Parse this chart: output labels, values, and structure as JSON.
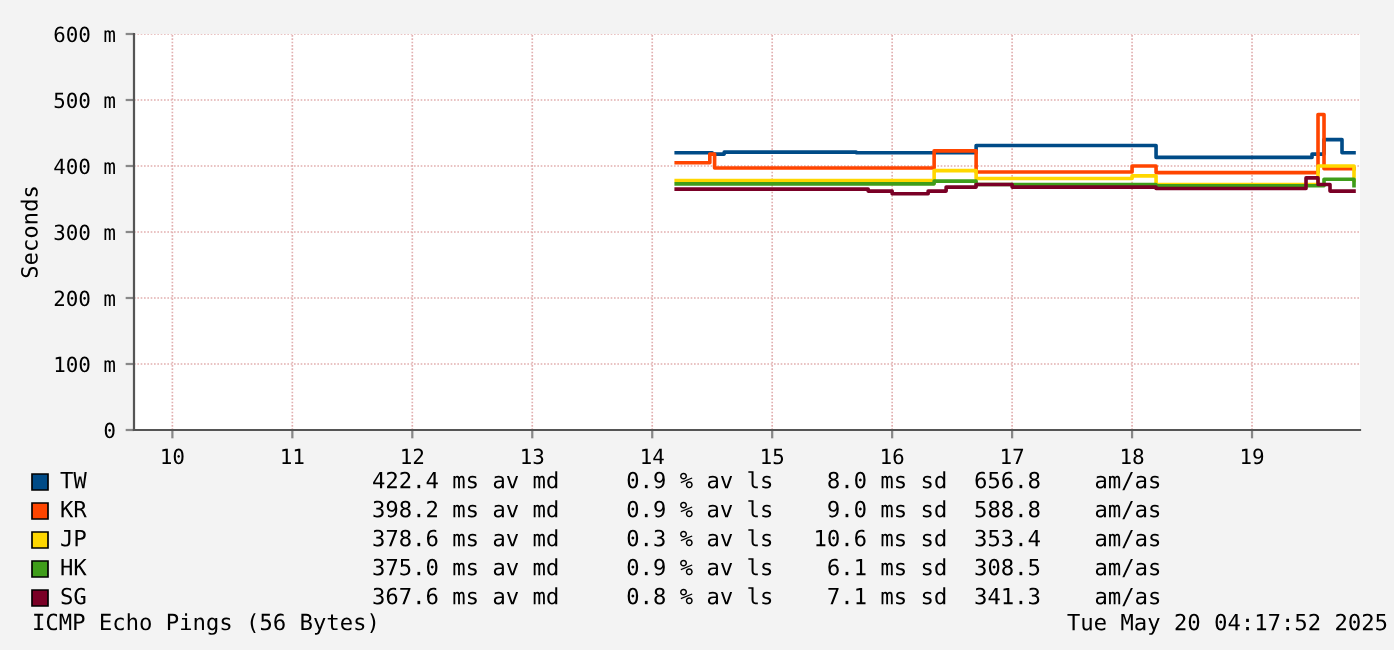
{
  "chart_data": {
    "type": "step",
    "ylabel": "Seconds",
    "xlim": [
      9.68,
      19.9
    ],
    "xticks": [
      10,
      11,
      12,
      13,
      14,
      15,
      16,
      17,
      18,
      19
    ],
    "ylim": [
      0,
      600
    ],
    "yticks": [
      0,
      {
        "value": 100,
        "label": "100 m"
      },
      {
        "value": 200,
        "label": "200 m"
      },
      {
        "value": 300,
        "label": "300 m"
      },
      {
        "value": 400,
        "label": "400 m"
      },
      {
        "value": 500,
        "label": "500 m"
      },
      {
        "value": 600,
        "label": "600 m"
      }
    ],
    "grid": true,
    "legend": "bottom",
    "series": [
      {
        "name": "TW",
        "color": "#004b87",
        "x": [
          14.2,
          14.5,
          14.6,
          15.5,
          15.7,
          16.7,
          18.2,
          19.5,
          19.6,
          19.75,
          19.85
        ],
        "values": [
          420,
          418,
          421,
          421,
          420,
          431,
          413,
          418,
          440,
          420,
          420
        ]
      },
      {
        "name": "KR",
        "color": "#ff4500",
        "x": [
          14.2,
          14.48,
          14.52,
          16.35,
          16.7,
          18.0,
          18.2,
          19.5,
          19.55,
          19.6,
          19.85
        ],
        "values": [
          405,
          418,
          397,
          423,
          391,
          400,
          390,
          390,
          478,
          396,
          396
        ]
      },
      {
        "name": "JP",
        "color": "#ffd700",
        "x": [
          14.2,
          16.35,
          16.7,
          18.0,
          18.2,
          19.5,
          19.55,
          19.85
        ],
        "values": [
          378,
          393,
          381,
          385,
          372,
          372,
          400,
          378
        ]
      },
      {
        "name": "HK",
        "color": "#3f9d1a",
        "x": [
          14.2,
          16.35,
          16.7,
          18.2,
          19.5,
          19.6,
          19.85
        ],
        "values": [
          373,
          377,
          372,
          370,
          370,
          380,
          370
        ]
      },
      {
        "name": "SG",
        "color": "#7a0026",
        "x": [
          14.2,
          15.8,
          16.0,
          16.3,
          16.45,
          16.7,
          17.0,
          18.2,
          19.45,
          19.55,
          19.65,
          19.85
        ],
        "values": [
          365,
          362,
          358,
          362,
          368,
          372,
          368,
          366,
          382,
          372,
          362,
          362
        ]
      }
    ],
    "annotations": [
      "422.4 ms av md     0.9 % av ls    8.0 ms sd  656.8    am/as",
      "398.2 ms av md     0.9 % av ls    9.0 ms sd  588.8    am/as",
      "378.6 ms av md     0.3 % av ls   10.6 ms sd  353.4    am/as",
      "375.0 ms av md     0.9 % av ls    6.1 ms sd  308.5    am/as",
      "367.6 ms av md     0.8 % av ls    7.1 ms sd  341.3    am/as",
      "ICMP Echo Pings (56 Bytes)",
      "Tue May 20 04:17:52 2025"
    ]
  }
}
